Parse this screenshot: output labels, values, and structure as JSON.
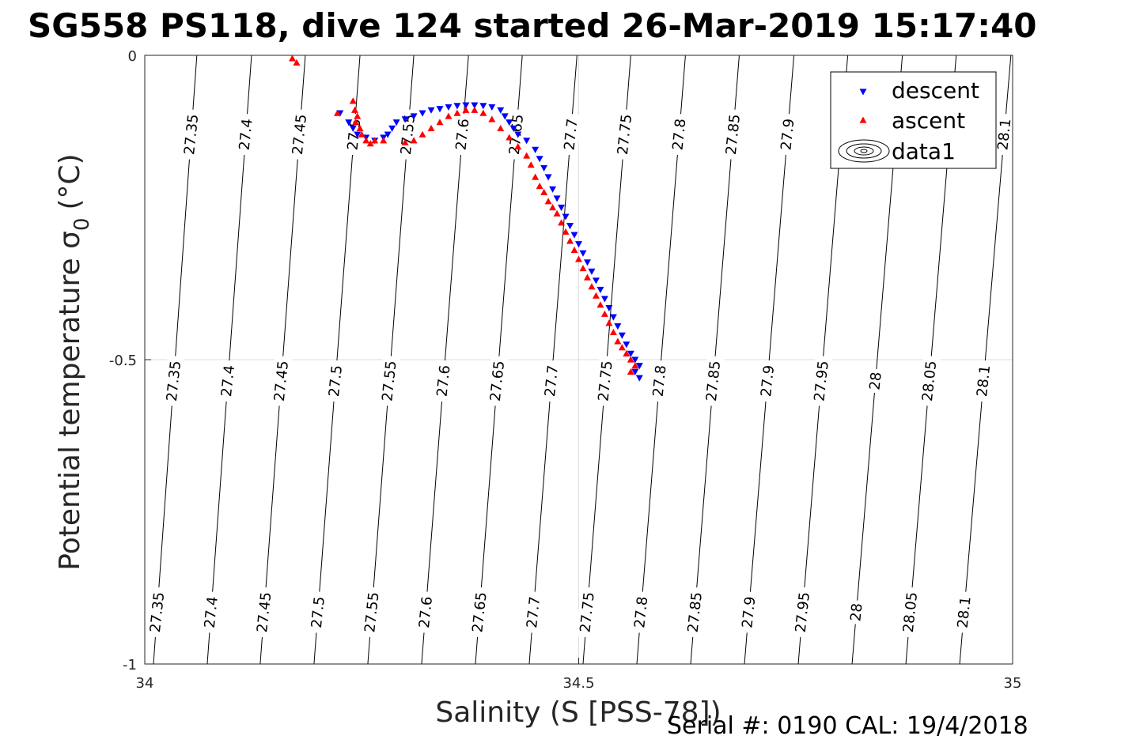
{
  "chart_data": {
    "type": "scatter",
    "title": "SG558 PS118, dive 124 started 26-Mar-2019 15:17:40",
    "xlabel": "Salinity (S [PSS-78])",
    "ylabel": "Potential temperature σ",
    "ylabel_sub": "0",
    "ylabel_unit": "(°C)",
    "xlim": [
      34,
      35
    ],
    "ylim": [
      -1,
      0
    ],
    "xticks": [
      34,
      34.5,
      35
    ],
    "xtick_labels": [
      "34",
      "34.5",
      "35"
    ],
    "yticks": [
      0,
      -0.5,
      -1
    ],
    "ytick_labels": [
      "0",
      "-0.5",
      "-1"
    ],
    "grid": true,
    "legend_position": "top-right",
    "legend": [
      "descent",
      "ascent",
      "data1"
    ],
    "series": [
      {
        "name": "descent",
        "marker": "triangle-down",
        "color": "#0000ff",
        "points": [
          [
            34.225,
            -0.095
          ],
          [
            34.235,
            -0.11
          ],
          [
            34.24,
            -0.12
          ],
          [
            34.245,
            -0.13
          ],
          [
            34.255,
            -0.135
          ],
          [
            34.265,
            -0.14
          ],
          [
            34.275,
            -0.135
          ],
          [
            34.28,
            -0.13
          ],
          [
            34.285,
            -0.12
          ],
          [
            34.29,
            -0.11
          ],
          [
            34.3,
            -0.105
          ],
          [
            34.31,
            -0.1
          ],
          [
            34.32,
            -0.095
          ],
          [
            34.33,
            -0.09
          ],
          [
            34.34,
            -0.088
          ],
          [
            34.35,
            -0.085
          ],
          [
            34.36,
            -0.083
          ],
          [
            34.37,
            -0.082
          ],
          [
            34.38,
            -0.082
          ],
          [
            34.39,
            -0.083
          ],
          [
            34.4,
            -0.085
          ],
          [
            34.41,
            -0.09
          ],
          [
            34.415,
            -0.1
          ],
          [
            34.42,
            -0.11
          ],
          [
            34.425,
            -0.12
          ],
          [
            34.43,
            -0.13
          ],
          [
            34.44,
            -0.14
          ],
          [
            34.45,
            -0.155
          ],
          [
            34.455,
            -0.17
          ],
          [
            34.46,
            -0.185
          ],
          [
            34.465,
            -0.2
          ],
          [
            34.47,
            -0.22
          ],
          [
            34.475,
            -0.235
          ],
          [
            34.48,
            -0.25
          ],
          [
            34.485,
            -0.265
          ],
          [
            34.49,
            -0.28
          ],
          [
            34.495,
            -0.295
          ],
          [
            34.5,
            -0.31
          ],
          [
            34.505,
            -0.325
          ],
          [
            34.51,
            -0.34
          ],
          [
            34.515,
            -0.355
          ],
          [
            34.52,
            -0.37
          ],
          [
            34.525,
            -0.385
          ],
          [
            34.53,
            -0.4
          ],
          [
            34.535,
            -0.415
          ],
          [
            34.54,
            -0.43
          ],
          [
            34.545,
            -0.445
          ],
          [
            34.55,
            -0.46
          ],
          [
            34.555,
            -0.475
          ],
          [
            34.56,
            -0.49
          ],
          [
            34.565,
            -0.5
          ],
          [
            34.57,
            -0.51
          ],
          [
            34.565,
            -0.52
          ],
          [
            34.57,
            -0.53
          ]
        ]
      },
      {
        "name": "ascent",
        "marker": "triangle-up",
        "color": "#ff0000",
        "points": [
          [
            34.17,
            -0.005
          ],
          [
            34.175,
            -0.012
          ],
          [
            34.222,
            -0.095
          ],
          [
            34.24,
            -0.075
          ],
          [
            34.242,
            -0.09
          ],
          [
            34.245,
            -0.1
          ],
          [
            34.243,
            -0.11
          ],
          [
            34.248,
            -0.12
          ],
          [
            34.25,
            -0.13
          ],
          [
            34.255,
            -0.14
          ],
          [
            34.26,
            -0.145
          ],
          [
            34.265,
            -0.14
          ],
          [
            34.275,
            -0.14
          ],
          [
            34.3,
            -0.143
          ],
          [
            34.31,
            -0.14
          ],
          [
            34.32,
            -0.13
          ],
          [
            34.33,
            -0.12
          ],
          [
            34.34,
            -0.11
          ],
          [
            34.35,
            -0.1
          ],
          [
            34.36,
            -0.095
          ],
          [
            34.37,
            -0.09
          ],
          [
            34.38,
            -0.09
          ],
          [
            34.39,
            -0.095
          ],
          [
            34.4,
            -0.105
          ],
          [
            34.41,
            -0.12
          ],
          [
            34.42,
            -0.135
          ],
          [
            34.43,
            -0.15
          ],
          [
            34.44,
            -0.165
          ],
          [
            34.445,
            -0.18
          ],
          [
            34.45,
            -0.2
          ],
          [
            34.455,
            -0.215
          ],
          [
            34.46,
            -0.225
          ],
          [
            34.465,
            -0.24
          ],
          [
            34.47,
            -0.25
          ],
          [
            34.475,
            -0.26
          ],
          [
            34.48,
            -0.275
          ],
          [
            34.485,
            -0.29
          ],
          [
            34.49,
            -0.305
          ],
          [
            34.495,
            -0.32
          ],
          [
            34.5,
            -0.335
          ],
          [
            34.505,
            -0.35
          ],
          [
            34.51,
            -0.365
          ],
          [
            34.515,
            -0.38
          ],
          [
            34.52,
            -0.395
          ],
          [
            34.525,
            -0.41
          ],
          [
            34.53,
            -0.425
          ],
          [
            34.535,
            -0.44
          ],
          [
            34.54,
            -0.455
          ],
          [
            34.545,
            -0.47
          ],
          [
            34.55,
            -0.48
          ],
          [
            34.555,
            -0.49
          ],
          [
            34.56,
            -0.5
          ],
          [
            34.565,
            -0.51
          ],
          [
            34.56,
            -0.52
          ]
        ]
      }
    ],
    "contours": {
      "levels": [
        "27.35",
        "27.4",
        "27.45",
        "27.5",
        "27.55",
        "27.6",
        "27.65",
        "27.7",
        "27.75",
        "27.8",
        "27.85",
        "27.9",
        "27.95",
        "28",
        "28.05",
        "28.1"
      ],
      "s_at_theta0": [
        34.06,
        34.123,
        34.185,
        34.248,
        34.31,
        34.373,
        34.435,
        34.498,
        34.56,
        34.623,
        34.685,
        34.748,
        34.81,
        34.873,
        34.935,
        34.998
      ],
      "s_at_thetaminus1": [
        34.01,
        34.072,
        34.133,
        34.195,
        34.257,
        34.319,
        34.381,
        34.443,
        34.505,
        34.567,
        34.629,
        34.691,
        34.753,
        34.815,
        34.877,
        34.939
      ],
      "label_rows": [
        {
          "theta": -0.13,
          "levels": [
            "27.35",
            "27.4",
            "27.45",
            "27.5",
            "27.55",
            "27.6",
            "27.65",
            "27.7",
            "27.75",
            "27.8",
            "27.85",
            "27.9",
            "28.1"
          ]
        },
        {
          "theta": -0.535,
          "levels": [
            "27.35",
            "27.4",
            "27.45",
            "27.5",
            "27.55",
            "27.6",
            "27.65",
            "27.7",
            "27.75",
            "27.8",
            "27.85",
            "27.9",
            "27.95",
            "28",
            "28.05",
            "28.1"
          ]
        },
        {
          "theta": -0.915,
          "levels": [
            "27.35",
            "27.4",
            "27.45",
            "27.5",
            "27.55",
            "27.6",
            "27.65",
            "27.7",
            "27.75",
            "27.8",
            "27.85",
            "27.9",
            "27.95",
            "28",
            "28.05",
            "28.1"
          ]
        }
      ]
    }
  },
  "footer": {
    "serial_text": "Serial #: 0190  CAL: 19/4/2018"
  }
}
